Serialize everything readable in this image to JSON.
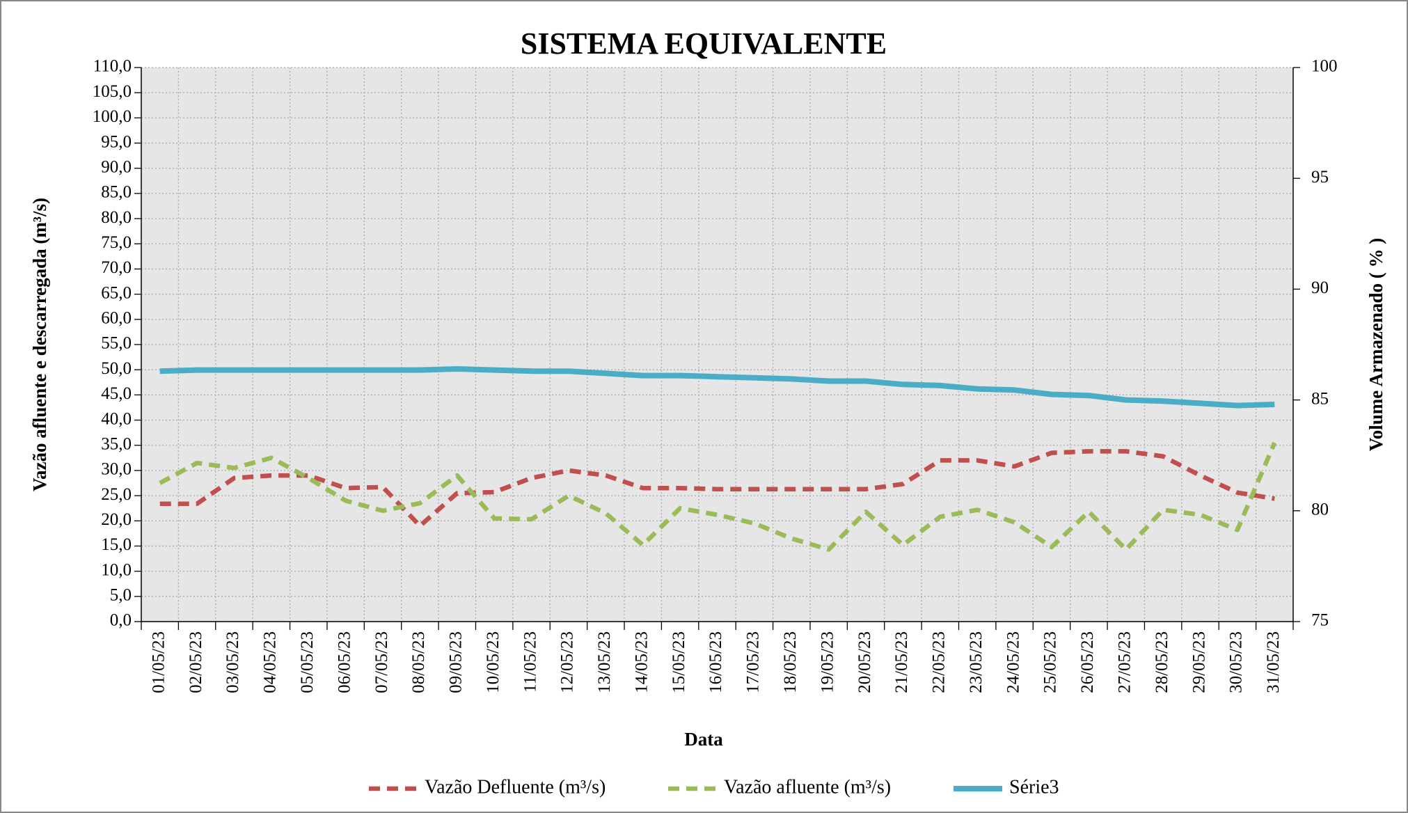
{
  "chart_data": {
    "type": "line",
    "title": "SISTEMA EQUIVALENTE",
    "xlabel": "Data",
    "ylabel": "Vazão afluente e descarregada (m³/s)",
    "y2label": "Volume Armazenado ( % )",
    "categories": [
      "01/05/23",
      "02/05/23",
      "03/05/23",
      "04/05/23",
      "05/05/23",
      "06/05/23",
      "07/05/23",
      "08/05/23",
      "09/05/23",
      "10/05/23",
      "11/05/23",
      "12/05/23",
      "13/05/23",
      "14/05/23",
      "15/05/23",
      "16/05/23",
      "17/05/23",
      "18/05/23",
      "19/05/23",
      "20/05/23",
      "21/05/23",
      "22/05/23",
      "23/05/23",
      "24/05/23",
      "25/05/23",
      "26/05/23",
      "27/05/23",
      "28/05/23",
      "29/05/23",
      "30/05/23",
      "31/05/23"
    ],
    "series": [
      {
        "name": "Vazão Defluente (m³/s)",
        "color": "#c0504d",
        "dashed": true,
        "values": [
          23.4,
          23.4,
          28.5,
          29,
          29,
          26.5,
          26.7,
          19,
          25.5,
          25.7,
          28.5,
          30,
          29,
          26.5,
          26.5,
          26.3,
          26.3,
          26.3,
          26.3,
          26.3,
          27.3,
          32,
          32,
          30.8,
          33.5,
          33.8,
          33.8,
          32.8,
          29,
          25.6,
          24.4
        ]
      },
      {
        "name": "Vazão afluente (m³/s)",
        "color": "#9bbb59",
        "dashed": true,
        "values": [
          27.5,
          31.5,
          30.5,
          32.5,
          28.5,
          24,
          22,
          23.5,
          29,
          20.5,
          20.3,
          25,
          21.5,
          15.2,
          22.5,
          21.2,
          19.5,
          16.5,
          14.3,
          21.8,
          15.2,
          20.8,
          22.2,
          19.7,
          14.8,
          21.8,
          14.3,
          22.2,
          21.2,
          18.2,
          35.5
        ]
      },
      {
        "name": "Série3",
        "color": "#4bacc6",
        "dashed": false,
        "axis": "y2",
        "values": [
          86.3,
          86.35,
          86.35,
          86.35,
          86.35,
          86.35,
          86.35,
          86.35,
          86.4,
          86.35,
          86.3,
          86.3,
          86.2,
          86.1,
          86.1,
          86.05,
          86.0,
          85.95,
          85.85,
          85.85,
          85.7,
          85.65,
          85.5,
          85.45,
          85.25,
          85.2,
          85.0,
          84.95,
          84.85,
          84.75,
          84.8
        ]
      }
    ],
    "ylim": [
      0,
      110
    ],
    "yticks": [
      {
        "value": 0,
        "label": "0,0"
      },
      {
        "value": 5,
        "label": "5,0"
      },
      {
        "value": 10,
        "label": "10,0"
      },
      {
        "value": 15,
        "label": "15,0"
      },
      {
        "value": 20,
        "label": "20,0"
      },
      {
        "value": 25,
        "label": "25,0"
      },
      {
        "value": 30,
        "label": "30,0"
      },
      {
        "value": 35,
        "label": "35,0"
      },
      {
        "value": 40,
        "label": "40,0"
      },
      {
        "value": 45,
        "label": "45,0"
      },
      {
        "value": 50,
        "label": "50,0"
      },
      {
        "value": 55,
        "label": "55,0"
      },
      {
        "value": 60,
        "label": "60,0"
      },
      {
        "value": 65,
        "label": "65,0"
      },
      {
        "value": 70,
        "label": "70,0"
      },
      {
        "value": 75,
        "label": "75,0"
      },
      {
        "value": 80,
        "label": "80,0"
      },
      {
        "value": 85,
        "label": "85,0"
      },
      {
        "value": 90,
        "label": "90,0"
      },
      {
        "value": 95,
        "label": "95,0"
      },
      {
        "value": 100,
        "label": "100,0"
      },
      {
        "value": 105,
        "label": "105,0"
      },
      {
        "value": 110,
        "label": "110,0"
      }
    ],
    "y2lim": [
      75,
      100
    ],
    "y2ticks": [
      75,
      80,
      85,
      90,
      95,
      100
    ],
    "grid": true,
    "legend": "bottom"
  }
}
